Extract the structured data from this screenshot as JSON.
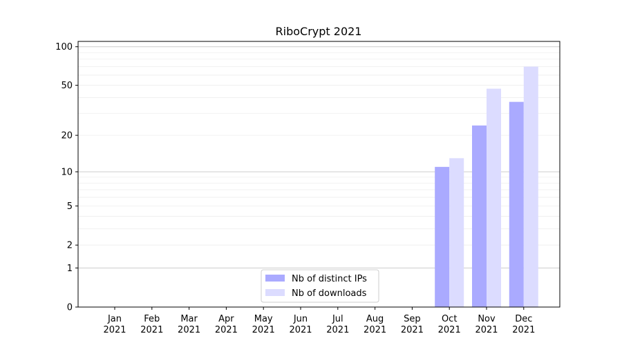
{
  "chart_data": {
    "type": "bar",
    "title": "RiboCrypt 2021",
    "xlabel": "",
    "ylabel": "",
    "yscale": "log1p",
    "ylim": [
      0,
      110
    ],
    "yticks": [
      0,
      1,
      2,
      5,
      10,
      20,
      50,
      100
    ],
    "grid": true,
    "legend_position": "lower-center",
    "categories": [
      {
        "month": "Jan",
        "year": "2021"
      },
      {
        "month": "Feb",
        "year": "2021"
      },
      {
        "month": "Mar",
        "year": "2021"
      },
      {
        "month": "Apr",
        "year": "2021"
      },
      {
        "month": "May",
        "year": "2021"
      },
      {
        "month": "Jun",
        "year": "2021"
      },
      {
        "month": "Jul",
        "year": "2021"
      },
      {
        "month": "Aug",
        "year": "2021"
      },
      {
        "month": "Sep",
        "year": "2021"
      },
      {
        "month": "Oct",
        "year": "2021"
      },
      {
        "month": "Nov",
        "year": "2021"
      },
      {
        "month": "Dec",
        "year": "2021"
      }
    ],
    "series": [
      {
        "name": "Nb of distinct IPs",
        "color": "#aaaaff",
        "values": [
          0,
          0,
          0,
          0,
          0,
          0,
          0,
          0,
          0,
          11,
          24,
          37
        ]
      },
      {
        "name": "Nb of downloads",
        "color": "#dcdcff",
        "values": [
          0,
          0,
          0,
          0,
          0,
          0,
          0,
          0,
          0,
          13,
          47,
          70
        ]
      }
    ]
  }
}
